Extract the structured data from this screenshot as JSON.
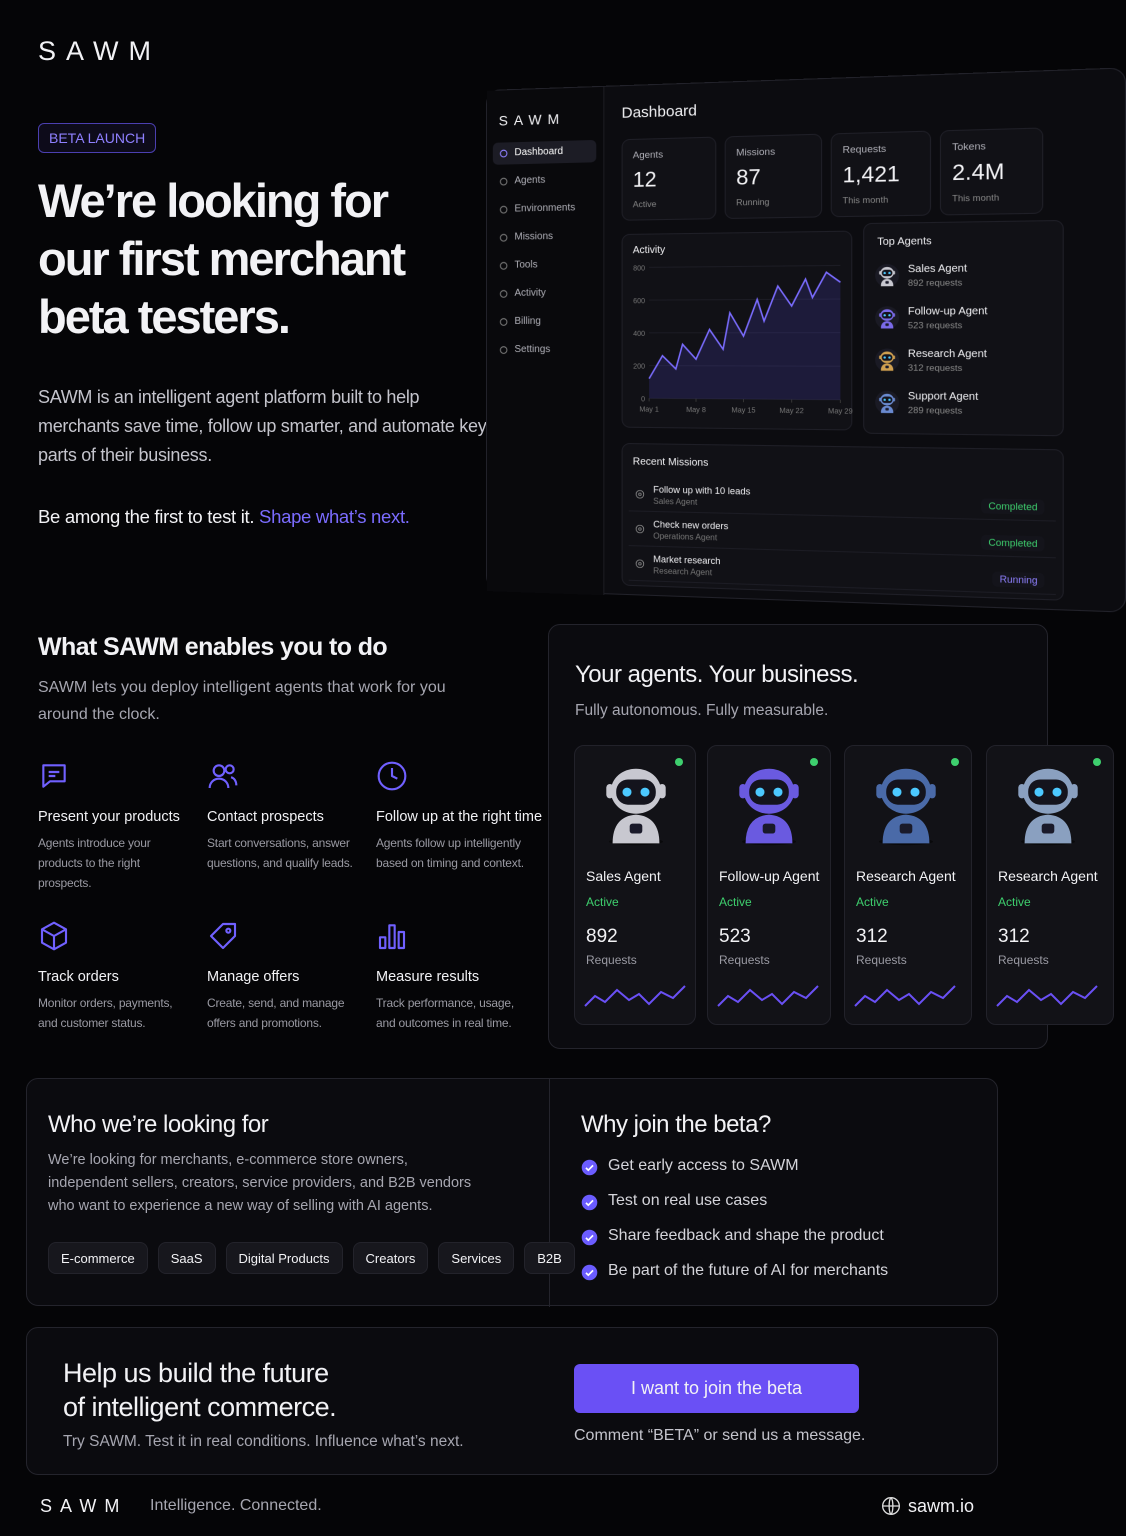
{
  "header": {
    "logo": "SAWM"
  },
  "hero": {
    "badge": "BETA LAUNCH",
    "title_lines": [
      "We’re looking for",
      "our first merchant",
      "beta testers."
    ],
    "description": "SAWM is an intelligent agent platform built to help merchants save time, follow up smarter, and automate key parts of their business.",
    "cta_text": "Be among the first to test it.",
    "cta_highlight": "Shape what’s next."
  },
  "dashboard": {
    "logo": "SAWM",
    "nav": [
      "Dashboard",
      "Agents",
      "Environments",
      "Missions",
      "Tools",
      "Activity",
      "Billing",
      "Settings"
    ],
    "title": "Dashboard",
    "stats": [
      {
        "label": "Agents",
        "value": "12",
        "note": "Active"
      },
      {
        "label": "Missions",
        "value": "87",
        "note": "Running"
      },
      {
        "label": "Requests",
        "value": "1,421",
        "note": "This month"
      },
      {
        "label": "Tokens",
        "value": "2.4M",
        "note": "This month"
      }
    ],
    "activity": {
      "title": "Activity",
      "x": [
        1,
        3,
        5,
        6,
        8,
        10,
        12,
        13,
        15,
        17,
        18,
        20,
        22,
        24,
        25,
        27,
        29
      ],
      "values": [
        120,
        260,
        180,
        330,
        240,
        420,
        300,
        520,
        380,
        600,
        470,
        680,
        560,
        720,
        610,
        760,
        700
      ],
      "xlim": [
        1,
        29
      ],
      "ylim": [
        0,
        800
      ],
      "yticks": [
        0,
        200,
        400,
        600,
        800
      ],
      "xticks": [
        {
          "value": 1,
          "label": "May 1"
        },
        {
          "value": 8,
          "label": "May 8"
        },
        {
          "value": 15,
          "label": "May 15"
        },
        {
          "value": 22,
          "label": "May 22"
        },
        {
          "value": 29,
          "label": "May 29"
        }
      ]
    },
    "top_agents": {
      "title": "Top Agents",
      "items": [
        {
          "name": "Sales Agent",
          "requests": "892 requests"
        },
        {
          "name": "Follow-up Agent",
          "requests": "523 requests"
        },
        {
          "name": "Research Agent",
          "requests": "312 requests"
        },
        {
          "name": "Support Agent",
          "requests": "289 requests"
        }
      ]
    },
    "recent_missions": {
      "title": "Recent Missions",
      "items": [
        {
          "task": "Follow up with 10 leads",
          "agent": "Sales Agent",
          "status": "Completed"
        },
        {
          "task": "Check new orders",
          "agent": "Operations Agent",
          "status": "Completed"
        },
        {
          "task": "Market research",
          "agent": "Research Agent",
          "status": "Running"
        }
      ]
    }
  },
  "features": {
    "title": "What SAWM enables you to do",
    "subtitle": "SAWM lets you deploy intelligent agents that work for you around the clock.",
    "items": [
      {
        "title": "Present your products",
        "description": "Agents introduce your products to the right prospects."
      },
      {
        "title": "Contact prospects",
        "description": "Start conversations, answer questions, and qualify leads."
      },
      {
        "title": "Follow up at the right time",
        "description": "Agents follow up intelligently based on timing and context."
      },
      {
        "title": "Track orders",
        "description": "Monitor orders, payments, and customer status."
      },
      {
        "title": "Manage offers",
        "description": "Create, send, and manage offers and promotions."
      },
      {
        "title": "Measure results",
        "description": "Track performance, usage, and outcomes in real time."
      }
    ]
  },
  "agents": {
    "title": "Your agents. Your business.",
    "subtitle": "Fully autonomous. Fully measurable.",
    "cards": [
      {
        "name": "Sales Agent",
        "status": "Active",
        "value": "892",
        "unit": "Requests"
      },
      {
        "name": "Follow-up Agent",
        "status": "Active",
        "value": "523",
        "unit": "Requests"
      },
      {
        "name": "Research Agent",
        "status": "Active",
        "value": "312",
        "unit": "Requests"
      },
      {
        "name": "Research Agent",
        "status": "Active",
        "value": "312",
        "unit": "Requests"
      }
    ]
  },
  "who": {
    "title": "Who we’re looking for",
    "description": "We’re looking for merchants, e-commerce store owners, independent sellers, creators, service providers, and B2B vendors who want to experience a new way of selling with AI agents.",
    "tags": [
      "E-commerce",
      "SaaS",
      "Digital Products",
      "Creators",
      "Services",
      "B2B"
    ]
  },
  "why": {
    "title": "Why join the beta?",
    "items": [
      "Get early access to SAWM",
      "Test on real use cases",
      "Share feedback and shape the product",
      "Be part of the future of AI for merchants"
    ]
  },
  "cta": {
    "title_lines": [
      "Help us build the future",
      "of intelligent commerce."
    ],
    "subtitle": "Try SAWM. Test it in real conditions. Influence what’s next.",
    "button": "I want to join the beta",
    "note": "Comment “BETA” or send us a message."
  },
  "footer": {
    "logo": "SAWM",
    "tagline": "Intelligence. Connected.",
    "website": "sawm.io"
  }
}
